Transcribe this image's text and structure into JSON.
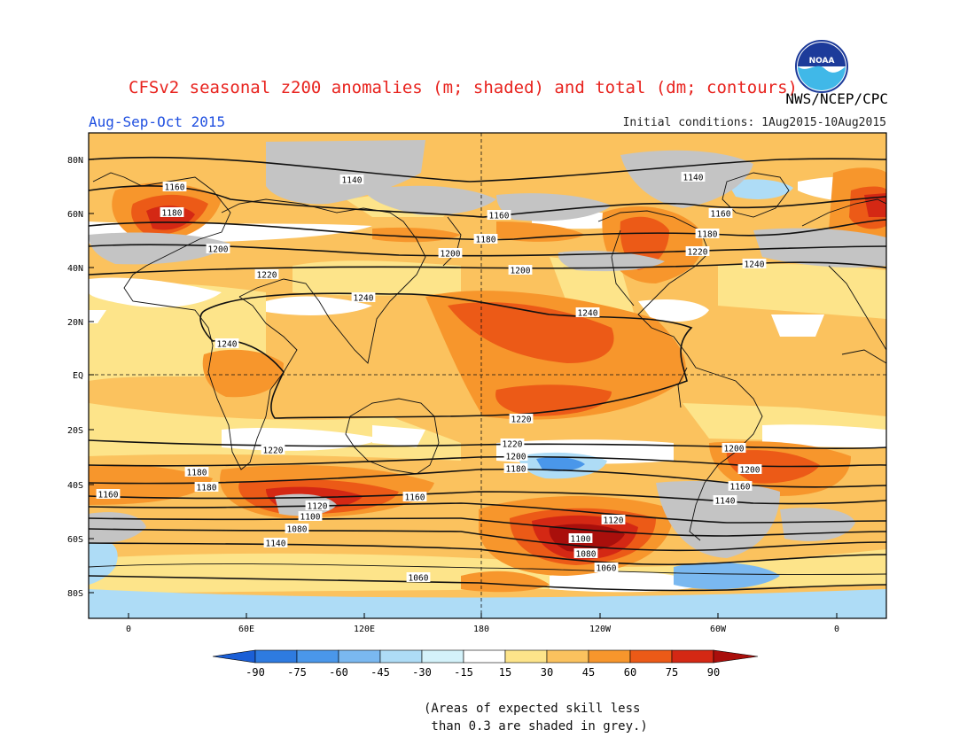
{
  "header": {
    "title": "CFSv2 seasonal z200 anomalies (m; shaded) and total (dm; contours)",
    "org": "NWS/NCEP/CPC",
    "period": "Aug-Sep-Oct 2015",
    "initial_conditions": "Initial conditions: 1Aug2015-10Aug2015",
    "logo_text": "NOAA"
  },
  "map": {
    "lat_labels": [
      "80N",
      "60N",
      "40N",
      "20N",
      "EQ",
      "20S",
      "40S",
      "60S",
      "80S"
    ],
    "lon_labels": [
      "0",
      "60E",
      "120E",
      "180",
      "120W",
      "60W",
      "0"
    ],
    "contour_labels": [
      {
        "text": "1140"
      },
      {
        "text": "1140"
      },
      {
        "text": "1160"
      },
      {
        "text": "1180"
      },
      {
        "text": "1160"
      },
      {
        "text": "1180"
      },
      {
        "text": "1160"
      },
      {
        "text": "1180"
      },
      {
        "text": "1200"
      },
      {
        "text": "1200"
      },
      {
        "text": "1220"
      },
      {
        "text": "1220"
      },
      {
        "text": "1200"
      },
      {
        "text": "1240"
      },
      {
        "text": "1240"
      },
      {
        "text": "1240"
      },
      {
        "text": "1240"
      },
      {
        "text": "1220"
      },
      {
        "text": "1220"
      },
      {
        "text": "1220"
      },
      {
        "text": "1200"
      },
      {
        "text": "1180"
      },
      {
        "text": "1200"
      },
      {
        "text": "1200"
      },
      {
        "text": "1180"
      },
      {
        "text": "1180"
      },
      {
        "text": "1160"
      },
      {
        "text": "1160"
      },
      {
        "text": "1160"
      },
      {
        "text": "1140"
      },
      {
        "text": "1120"
      },
      {
        "text": "1100"
      },
      {
        "text": "1080"
      },
      {
        "text": "1140"
      },
      {
        "text": "1120"
      },
      {
        "text": "1100"
      },
      {
        "text": "1080"
      },
      {
        "text": "1060"
      },
      {
        "text": "1060"
      }
    ]
  },
  "colorbar": {
    "tick_labels": [
      "-90",
      "-75",
      "-60",
      "-45",
      "-30",
      "-15",
      "15",
      "30",
      "45",
      "60",
      "75",
      "90"
    ],
    "colors": [
      "#1b5fd6",
      "#2e7be0",
      "#4a97ea",
      "#7ab8f0",
      "#aedcf6",
      "#d4f2fa",
      "#ffffff",
      "#fde48a",
      "#fbc25e",
      "#f7962c",
      "#ec5a17",
      "#d42814",
      "#a90f0c"
    ]
  },
  "note": {
    "line1": "(Areas of expected skill less",
    "line2": " than 0.3 are shaded in grey.)"
  }
}
